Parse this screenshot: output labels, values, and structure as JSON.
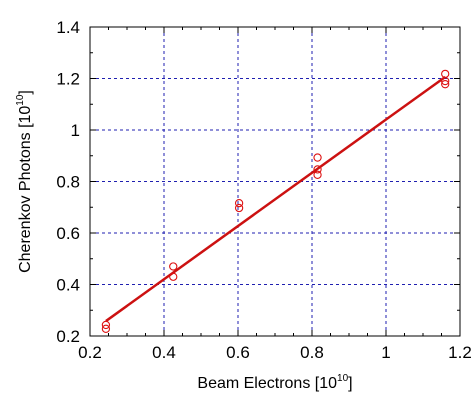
{
  "chart_data": {
    "type": "scatter",
    "title": "",
    "xlabel": "Beam Electrons [10",
    "xlabel_sup": "10",
    "xlabel_end": "]",
    "ylabel": "Cherenkov Photons [10",
    "ylabel_sup": "10",
    "ylabel_end": "]",
    "xlim": [
      0.2,
      1.2
    ],
    "ylim": [
      0.2,
      1.4
    ],
    "x_ticks": [
      0.2,
      0.4,
      0.6,
      0.8,
      1.0,
      1.2
    ],
    "x_tick_labels": [
      "0.2",
      "0.4",
      "0.6",
      "0.8",
      "1",
      "1.2"
    ],
    "y_ticks": [
      0.2,
      0.4,
      0.6,
      0.8,
      1.0,
      1.2,
      1.4
    ],
    "y_tick_labels": [
      "0.2",
      "0.4",
      "0.6",
      "0.8",
      "1",
      "1.2",
      "1.4"
    ],
    "grid": true,
    "series": [
      {
        "kind": "points",
        "marker": "open-circle",
        "color": "#dd1111",
        "points": [
          {
            "x": 0.243,
            "y": 0.243
          },
          {
            "x": 0.243,
            "y": 0.228
          },
          {
            "x": 0.425,
            "y": 0.47
          },
          {
            "x": 0.425,
            "y": 0.43
          },
          {
            "x": 0.603,
            "y": 0.716
          },
          {
            "x": 0.603,
            "y": 0.697
          },
          {
            "x": 0.815,
            "y": 0.893
          },
          {
            "x": 0.815,
            "y": 0.847
          },
          {
            "x": 0.815,
            "y": 0.826
          },
          {
            "x": 1.16,
            "y": 1.218
          },
          {
            "x": 1.16,
            "y": 1.19
          },
          {
            "x": 1.16,
            "y": 1.178
          }
        ]
      },
      {
        "kind": "fit-line",
        "color": "#cc1111",
        "points": [
          {
            "x": 0.243,
            "y": 0.258
          },
          {
            "x": 1.16,
            "y": 1.206
          }
        ]
      }
    ]
  }
}
